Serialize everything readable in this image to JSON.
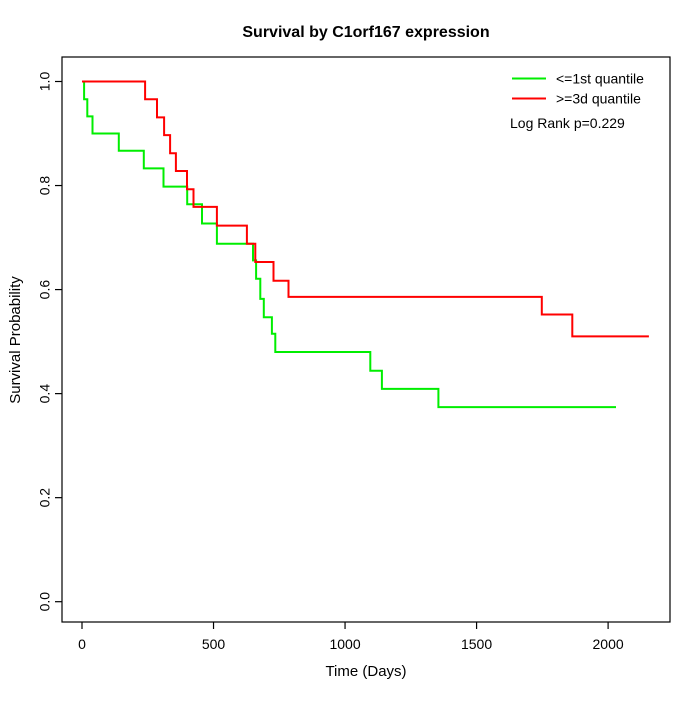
{
  "chart_data": {
    "type": "line",
    "subtype": "kaplan-meier-step",
    "title": "Survival by C1orf167 expression",
    "xlabel": "Time (Days)",
    "ylabel": "Survival Probability",
    "xlim": [
      0,
      2200
    ],
    "ylim": [
      0.0,
      1.0
    ],
    "grid": false,
    "legend_position": "top-right",
    "annotation": "Log Rank p=0.229",
    "x_ticks": [
      0,
      500,
      1000,
      1500,
      2000
    ],
    "x_tick_labels": [
      "0",
      "500",
      "1000",
      "1500",
      "2000"
    ],
    "y_ticks": [
      0.0,
      0.2,
      0.4,
      0.6,
      0.8,
      1.0
    ],
    "y_tick_labels": [
      "0.0",
      "0.2",
      "0.4",
      "0.6",
      "0.8",
      "1.0"
    ],
    "axis_color": "#000000",
    "series": [
      {
        "name": "<=1st quantile",
        "color": "#00EE00",
        "points": [
          [
            0,
            1.0
          ],
          [
            8,
            0.966
          ],
          [
            20,
            0.933
          ],
          [
            40,
            0.9
          ],
          [
            140,
            0.867
          ],
          [
            235,
            0.833
          ],
          [
            310,
            0.798
          ],
          [
            400,
            0.764
          ],
          [
            456,
            0.727
          ],
          [
            513,
            0.688
          ],
          [
            650,
            0.656
          ],
          [
            662,
            0.621
          ],
          [
            678,
            0.582
          ],
          [
            691,
            0.547
          ],
          [
            722,
            0.515
          ],
          [
            735,
            0.48
          ],
          [
            1096,
            0.444
          ],
          [
            1140,
            0.409
          ],
          [
            1355,
            0.374
          ],
          [
            2030,
            0.374
          ]
        ]
      },
      {
        "name": ">=3d quantile",
        "color": "#FF0000",
        "points": [
          [
            0,
            1.0
          ],
          [
            240,
            0.966
          ],
          [
            285,
            0.931
          ],
          [
            312,
            0.897
          ],
          [
            335,
            0.862
          ],
          [
            357,
            0.828
          ],
          [
            399,
            0.793
          ],
          [
            424,
            0.759
          ],
          [
            513,
            0.723
          ],
          [
            627,
            0.688
          ],
          [
            659,
            0.653
          ],
          [
            728,
            0.617
          ],
          [
            785,
            0.586
          ],
          [
            1748,
            0.552
          ],
          [
            1864,
            0.51
          ],
          [
            2155,
            0.51
          ]
        ]
      }
    ]
  }
}
